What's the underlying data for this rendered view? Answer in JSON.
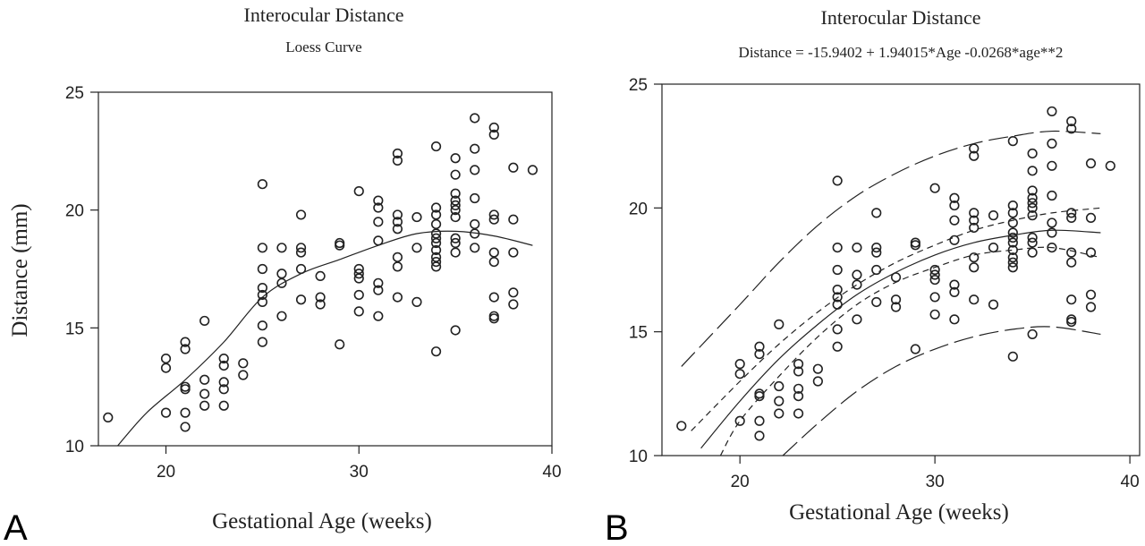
{
  "chart_data": [
    {
      "panel": "A",
      "type": "scatter",
      "title": "Interocular Distance",
      "subtitle": "Loess Curve",
      "xlabel": "Gestational Age (weeks)",
      "ylabel": "Distance (mm)",
      "xlim": [
        16.5,
        40
      ],
      "ylim": [
        10,
        25
      ],
      "xticks": [
        20,
        30,
        40
      ],
      "yticks": [
        10,
        15,
        20,
        25
      ],
      "grid": false,
      "points": [
        [
          17,
          11.2
        ],
        [
          20,
          13.7
        ],
        [
          20,
          13.3
        ],
        [
          20,
          11.4
        ],
        [
          21,
          14.4
        ],
        [
          21,
          14.1
        ],
        [
          21,
          12.5
        ],
        [
          21,
          12.4
        ],
        [
          21,
          11.4
        ],
        [
          21,
          10.8
        ],
        [
          22,
          15.3
        ],
        [
          22,
          12.8
        ],
        [
          22,
          12.2
        ],
        [
          22,
          11.7
        ],
        [
          23,
          13.7
        ],
        [
          23,
          13.4
        ],
        [
          23,
          12.7
        ],
        [
          23,
          12.4
        ],
        [
          23,
          11.7
        ],
        [
          24,
          13.5
        ],
        [
          24,
          13.0
        ],
        [
          25,
          21.1
        ],
        [
          25,
          18.4
        ],
        [
          25,
          17.5
        ],
        [
          25,
          16.7
        ],
        [
          25,
          16.4
        ],
        [
          25,
          16.1
        ],
        [
          25,
          15.1
        ],
        [
          25,
          14.4
        ],
        [
          26,
          18.4
        ],
        [
          26,
          17.3
        ],
        [
          26,
          16.9
        ],
        [
          26,
          15.5
        ],
        [
          27,
          19.8
        ],
        [
          27,
          18.4
        ],
        [
          27,
          18.2
        ],
        [
          27,
          17.5
        ],
        [
          27,
          16.2
        ],
        [
          28,
          17.2
        ],
        [
          28,
          16.3
        ],
        [
          28,
          16.0
        ],
        [
          29,
          18.6
        ],
        [
          29,
          18.5
        ],
        [
          29,
          14.3
        ],
        [
          30,
          20.8
        ],
        [
          30,
          17.5
        ],
        [
          30,
          17.3
        ],
        [
          30,
          17.1
        ],
        [
          30,
          16.4
        ],
        [
          30,
          15.7
        ],
        [
          31,
          20.4
        ],
        [
          31,
          20.1
        ],
        [
          31,
          19.5
        ],
        [
          31,
          18.7
        ],
        [
          31,
          16.9
        ],
        [
          31,
          16.6
        ],
        [
          31,
          15.5
        ],
        [
          32,
          22.4
        ],
        [
          32,
          22.1
        ],
        [
          32,
          19.8
        ],
        [
          32,
          19.5
        ],
        [
          32,
          19.2
        ],
        [
          32,
          18.0
        ],
        [
          32,
          17.6
        ],
        [
          32,
          16.3
        ],
        [
          33,
          19.7
        ],
        [
          33,
          18.4
        ],
        [
          33,
          16.1
        ],
        [
          34,
          22.7
        ],
        [
          34,
          20.1
        ],
        [
          34,
          19.8
        ],
        [
          34,
          19.4
        ],
        [
          34,
          19.0
        ],
        [
          34,
          18.8
        ],
        [
          34,
          18.6
        ],
        [
          34,
          18.3
        ],
        [
          34,
          18.0
        ],
        [
          34,
          17.8
        ],
        [
          34,
          17.6
        ],
        [
          34,
          14.0
        ],
        [
          35,
          22.2
        ],
        [
          35,
          21.5
        ],
        [
          35,
          20.7
        ],
        [
          35,
          20.4
        ],
        [
          35,
          20.2
        ],
        [
          35,
          20.0
        ],
        [
          35,
          19.7
        ],
        [
          35,
          18.8
        ],
        [
          35,
          18.6
        ],
        [
          35,
          18.2
        ],
        [
          35,
          14.9
        ],
        [
          36,
          23.9
        ],
        [
          36,
          22.6
        ],
        [
          36,
          21.7
        ],
        [
          36,
          20.5
        ],
        [
          36,
          19.4
        ],
        [
          36,
          19.0
        ],
        [
          36,
          18.4
        ],
        [
          37,
          23.5
        ],
        [
          37,
          23.2
        ],
        [
          37,
          19.8
        ],
        [
          37,
          19.6
        ],
        [
          37,
          18.2
        ],
        [
          37,
          17.8
        ],
        [
          37,
          16.3
        ],
        [
          37,
          15.5
        ],
        [
          37,
          15.4
        ],
        [
          38,
          21.8
        ],
        [
          38,
          19.6
        ],
        [
          38,
          18.2
        ],
        [
          38,
          16.5
        ],
        [
          38,
          16.0
        ],
        [
          39,
          21.7
        ]
      ],
      "series": [
        {
          "style": "solid",
          "x": [
            17.5,
            19,
            21,
            23,
            25,
            27,
            29,
            31,
            33,
            35,
            37,
            39
          ],
          "y": [
            10.0,
            11.4,
            12.8,
            14.4,
            16.3,
            17.3,
            17.9,
            18.5,
            19.0,
            19.1,
            18.9,
            18.5
          ]
        }
      ]
    },
    {
      "panel": "B",
      "type": "scatter",
      "title": "Interocular Distance",
      "subtitle": "Distance = -15.9402 + 1.94015*Age -0.0268*age**2",
      "xlabel": "Gestational Age (weeks)",
      "ylabel": "",
      "xlim": [
        16,
        40.5
      ],
      "ylim": [
        10,
        25
      ],
      "xticks": [
        20,
        30,
        40
      ],
      "yticks": [
        10,
        15,
        20,
        25
      ],
      "grid": false,
      "points": [
        [
          17,
          11.2
        ],
        [
          20,
          13.7
        ],
        [
          20,
          13.3
        ],
        [
          20,
          11.4
        ],
        [
          21,
          14.4
        ],
        [
          21,
          14.1
        ],
        [
          21,
          12.5
        ],
        [
          21,
          12.4
        ],
        [
          21,
          11.4
        ],
        [
          21,
          10.8
        ],
        [
          22,
          15.3
        ],
        [
          22,
          12.8
        ],
        [
          22,
          12.2
        ],
        [
          22,
          11.7
        ],
        [
          23,
          13.7
        ],
        [
          23,
          13.4
        ],
        [
          23,
          12.7
        ],
        [
          23,
          12.4
        ],
        [
          23,
          11.7
        ],
        [
          24,
          13.5
        ],
        [
          24,
          13.0
        ],
        [
          25,
          21.1
        ],
        [
          25,
          18.4
        ],
        [
          25,
          17.5
        ],
        [
          25,
          16.7
        ],
        [
          25,
          16.4
        ],
        [
          25,
          16.1
        ],
        [
          25,
          15.1
        ],
        [
          25,
          14.4
        ],
        [
          26,
          18.4
        ],
        [
          26,
          17.3
        ],
        [
          26,
          16.9
        ],
        [
          26,
          15.5
        ],
        [
          27,
          19.8
        ],
        [
          27,
          18.4
        ],
        [
          27,
          18.2
        ],
        [
          27,
          17.5
        ],
        [
          27,
          16.2
        ],
        [
          28,
          17.2
        ],
        [
          28,
          16.3
        ],
        [
          28,
          16.0
        ],
        [
          29,
          18.6
        ],
        [
          29,
          18.5
        ],
        [
          29,
          14.3
        ],
        [
          30,
          20.8
        ],
        [
          30,
          17.5
        ],
        [
          30,
          17.3
        ],
        [
          30,
          17.1
        ],
        [
          30,
          16.4
        ],
        [
          30,
          15.7
        ],
        [
          31,
          20.4
        ],
        [
          31,
          20.1
        ],
        [
          31,
          19.5
        ],
        [
          31,
          18.7
        ],
        [
          31,
          16.9
        ],
        [
          31,
          16.6
        ],
        [
          31,
          15.5
        ],
        [
          32,
          22.4
        ],
        [
          32,
          22.1
        ],
        [
          32,
          19.8
        ],
        [
          32,
          19.5
        ],
        [
          32,
          19.2
        ],
        [
          32,
          18.0
        ],
        [
          32,
          17.6
        ],
        [
          32,
          16.3
        ],
        [
          33,
          19.7
        ],
        [
          33,
          18.4
        ],
        [
          33,
          16.1
        ],
        [
          34,
          22.7
        ],
        [
          34,
          20.1
        ],
        [
          34,
          19.8
        ],
        [
          34,
          19.4
        ],
        [
          34,
          19.0
        ],
        [
          34,
          18.8
        ],
        [
          34,
          18.6
        ],
        [
          34,
          18.3
        ],
        [
          34,
          18.0
        ],
        [
          34,
          17.8
        ],
        [
          34,
          17.6
        ],
        [
          34,
          14.0
        ],
        [
          35,
          22.2
        ],
        [
          35,
          21.5
        ],
        [
          35,
          20.7
        ],
        [
          35,
          20.4
        ],
        [
          35,
          20.2
        ],
        [
          35,
          20.0
        ],
        [
          35,
          19.7
        ],
        [
          35,
          18.8
        ],
        [
          35,
          18.6
        ],
        [
          35,
          18.2
        ],
        [
          35,
          14.9
        ],
        [
          36,
          23.9
        ],
        [
          36,
          22.6
        ],
        [
          36,
          21.7
        ],
        [
          36,
          20.5
        ],
        [
          36,
          19.4
        ],
        [
          36,
          19.0
        ],
        [
          36,
          18.4
        ],
        [
          37,
          23.5
        ],
        [
          37,
          23.2
        ],
        [
          37,
          19.8
        ],
        [
          37,
          19.6
        ],
        [
          37,
          18.2
        ],
        [
          37,
          17.8
        ],
        [
          37,
          16.3
        ],
        [
          37,
          15.5
        ],
        [
          37,
          15.4
        ],
        [
          38,
          21.8
        ],
        [
          38,
          19.6
        ],
        [
          38,
          18.2
        ],
        [
          38,
          16.5
        ],
        [
          38,
          16.0
        ],
        [
          39,
          21.7
        ]
      ],
      "series": [
        {
          "style": "solid",
          "x": [
            18,
            20,
            22,
            24,
            26,
            28,
            30,
            32,
            34,
            36,
            38.5
          ],
          "y": [
            10.3,
            12.2,
            13.9,
            15.3,
            16.5,
            17.4,
            18.1,
            18.6,
            18.9,
            19.1,
            19.0
          ]
        },
        {
          "style": "short-dash",
          "x": [
            17.5,
            20,
            22,
            24,
            26,
            28,
            30,
            32,
            34,
            36,
            38.5
          ],
          "y": [
            11.0,
            13.0,
            14.5,
            15.8,
            16.9,
            17.8,
            18.5,
            19.1,
            19.5,
            19.8,
            20.0
          ]
        },
        {
          "style": "short-dash",
          "x": [
            19,
            20,
            22,
            24,
            26,
            28,
            30,
            32,
            34,
            36,
            38.5
          ],
          "y": [
            10.0,
            11.4,
            13.2,
            14.8,
            16.1,
            17.0,
            17.6,
            18.1,
            18.3,
            18.4,
            18.0
          ]
        },
        {
          "style": "long-dash",
          "x": [
            17,
            20,
            22,
            24,
            26,
            28,
            30,
            32,
            34,
            36,
            38.5
          ],
          "y": [
            13.6,
            16.1,
            17.8,
            19.3,
            20.5,
            21.4,
            22.1,
            22.6,
            22.9,
            23.1,
            23.0
          ]
        },
        {
          "style": "long-dash",
          "x": [
            22.2,
            24,
            26,
            28,
            30,
            32,
            34,
            36,
            38.5
          ],
          "y": [
            10.0,
            11.3,
            12.6,
            13.6,
            14.3,
            14.8,
            15.1,
            15.2,
            14.9
          ]
        }
      ]
    }
  ],
  "panels": [
    "A",
    "B"
  ]
}
